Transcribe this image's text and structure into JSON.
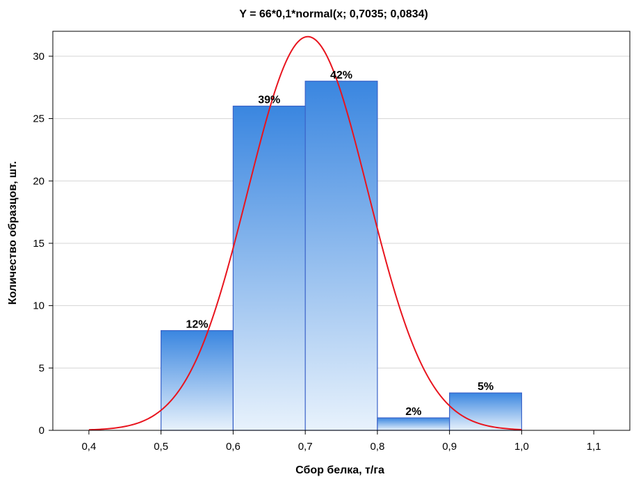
{
  "chart_data": {
    "type": "bar",
    "title": "Y = 66*0,1*normal(x; 0,7035; 0,0834)",
    "xlabel": "Сбор белка, т/га",
    "ylabel": "Количество образцов, шт.",
    "xlim": [
      0.35,
      1.15
    ],
    "ylim": [
      0,
      32
    ],
    "x_ticks": [
      0.4,
      0.5,
      0.6,
      0.7,
      0.8,
      0.9,
      1.0,
      1.1
    ],
    "x_tick_labels": [
      "0,4",
      "0,5",
      "0,6",
      "0,7",
      "0,8",
      "0,9",
      "1,0",
      "1,1"
    ],
    "y_ticks": [
      0,
      5,
      10,
      15,
      20,
      25,
      30
    ],
    "y_tick_labels": [
      "0",
      "5",
      "10",
      "15",
      "20",
      "25",
      "30"
    ],
    "grid": true,
    "bins": [
      {
        "x0": 0.5,
        "x1": 0.6,
        "value": 8,
        "label": "12%"
      },
      {
        "x0": 0.6,
        "x1": 0.7,
        "value": 26,
        "label": "39%"
      },
      {
        "x0": 0.7,
        "x1": 0.8,
        "value": 28,
        "label": "42%"
      },
      {
        "x0": 0.8,
        "x1": 0.9,
        "value": 1,
        "label": "2%"
      },
      {
        "x0": 0.9,
        "x1": 1.0,
        "value": 3,
        "label": "5%"
      }
    ],
    "curve": {
      "type": "normal",
      "n": 66,
      "bin_width": 0.1,
      "mean": 0.7035,
      "sd": 0.0834,
      "x_range": [
        0.4,
        1.0
      ]
    },
    "colors": {
      "curve": "#e8141e",
      "bar_border": "#3a62c8",
      "bar_top": "#3a86e0",
      "bar_bottom": "#e8f2fc",
      "grid": "#d4d4d4"
    }
  }
}
